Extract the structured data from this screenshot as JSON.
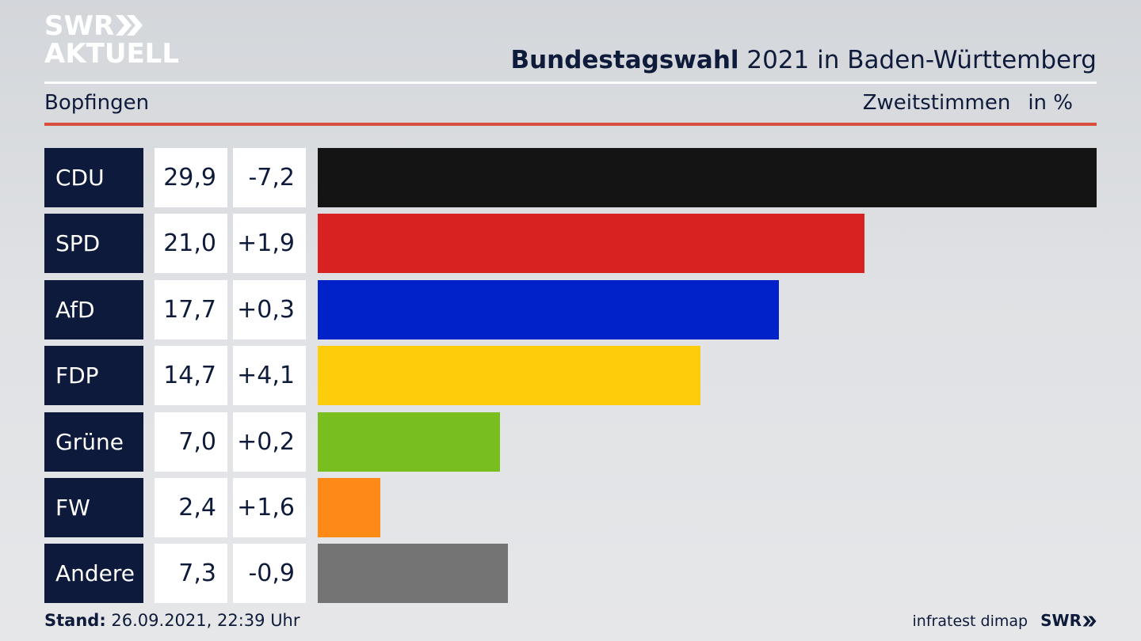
{
  "branding": {
    "logo_line1": "SWR",
    "logo_line2": "AKTUELL",
    "footer_source": "infratest dimap",
    "footer_logo": "SWR"
  },
  "header": {
    "title_bold": "Bundestagswahl",
    "title_rest": "2021 in Baden-Württemberg",
    "region": "Bopfingen",
    "measure": "Zweitstimmen",
    "unit": "in %"
  },
  "footer": {
    "stand_label": "Stand:",
    "stand_value": "26.09.2021, 22:39 Uhr"
  },
  "colors": {
    "party_box": "#0d1a3b",
    "accent_rule": "#d94f3d"
  },
  "chart_data": {
    "type": "bar",
    "orientation": "horizontal",
    "title": "Bundestagswahl 2021 in Baden-Württemberg",
    "subtitle": "Bopfingen",
    "ylabel": "Zweitstimmen in %",
    "categories": [
      "CDU",
      "SPD",
      "AfD",
      "FDP",
      "Grüne",
      "FW",
      "Andere"
    ],
    "values": [
      29.9,
      21.0,
      17.7,
      14.7,
      7.0,
      2.4,
      7.3
    ],
    "value_labels": [
      "29,9",
      "21,0",
      "17,7",
      "14,7",
      "7,0",
      "2,4",
      "7,3"
    ],
    "changes": [
      -7.2,
      1.9,
      0.3,
      4.1,
      0.2,
      1.6,
      -0.9
    ],
    "change_labels": [
      "-7,2",
      "+1,9",
      "+0,3",
      "+4,1",
      "+0,2",
      "+1,6",
      "-0,9"
    ],
    "bar_colors": [
      "#141414",
      "#d82121",
      "#0022c8",
      "#fdcc0a",
      "#78be1e",
      "#fd8a17",
      "#747474"
    ],
    "xlim": [
      0,
      29.9
    ]
  }
}
